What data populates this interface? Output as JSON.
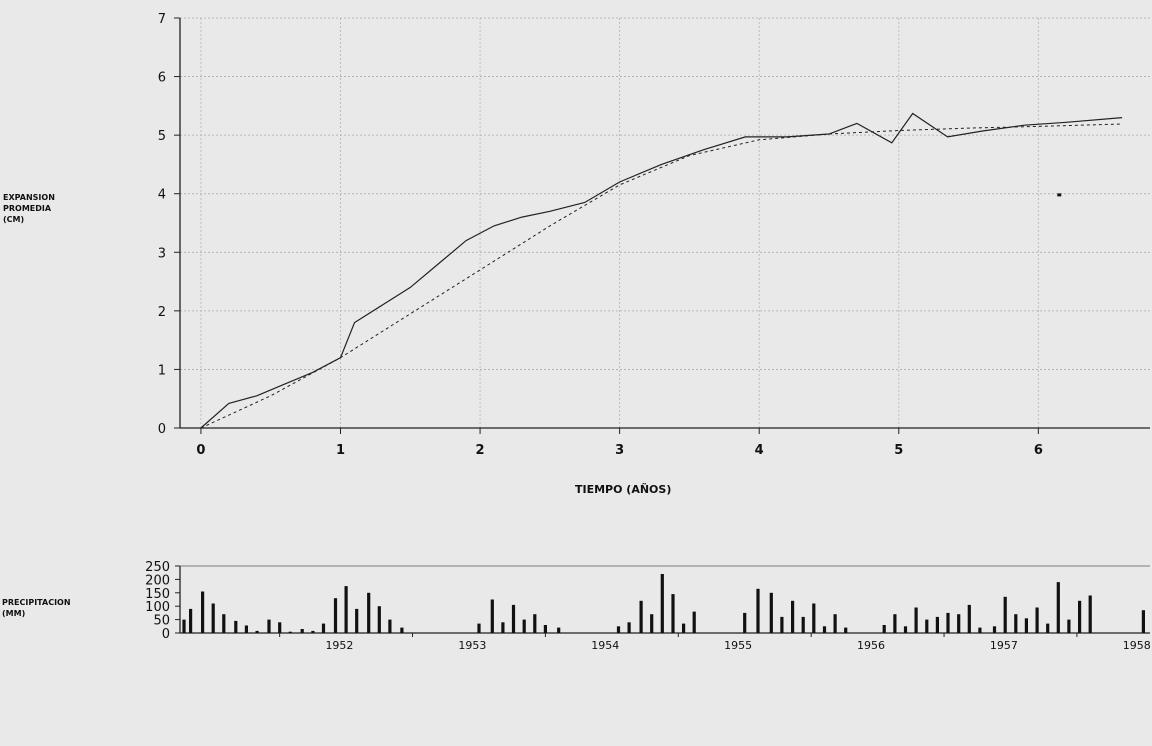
{
  "chart_data": [
    {
      "type": "line",
      "title": "",
      "xlabel": "TIEMPO (AÑOS)",
      "ylabel": "EXPANSION PROMEDIA (CM)",
      "xlim": [
        -0.15,
        6.8
      ],
      "ylim": [
        0,
        7
      ],
      "x_ticks": [
        0,
        1,
        2,
        3,
        4,
        5,
        6
      ],
      "y_ticks": [
        0,
        1,
        2,
        3,
        4,
        5,
        6,
        7
      ],
      "grid": true,
      "series": [
        {
          "values": [
            {
              "x": 0.0,
              "y": 0.0
            },
            {
              "x": 0.2,
              "y": 0.42
            },
            {
              "x": 0.4,
              "y": 0.55
            },
            {
              "x": 0.6,
              "y": 0.75
            },
            {
              "x": 0.8,
              "y": 0.95
            },
            {
              "x": 1.0,
              "y": 1.2
            },
            {
              "x": 1.1,
              "y": 1.8
            },
            {
              "x": 1.3,
              "y": 2.1
            },
            {
              "x": 1.5,
              "y": 2.4
            },
            {
              "x": 1.7,
              "y": 2.8
            },
            {
              "x": 1.9,
              "y": 3.2
            },
            {
              "x": 2.1,
              "y": 3.45
            },
            {
              "x": 2.3,
              "y": 3.6
            },
            {
              "x": 2.5,
              "y": 3.7
            },
            {
              "x": 2.75,
              "y": 3.85
            },
            {
              "x": 3.0,
              "y": 4.2
            },
            {
              "x": 3.3,
              "y": 4.5
            },
            {
              "x": 3.6,
              "y": 4.75
            },
            {
              "x": 3.9,
              "y": 4.97
            },
            {
              "x": 4.2,
              "y": 4.97
            },
            {
              "x": 4.5,
              "y": 5.02
            },
            {
              "x": 4.7,
              "y": 5.2
            },
            {
              "x": 4.95,
              "y": 4.87
            },
            {
              "x": 5.1,
              "y": 5.37
            },
            {
              "x": 5.35,
              "y": 4.97
            },
            {
              "x": 5.6,
              "y": 5.07
            },
            {
              "x": 5.9,
              "y": 5.17
            },
            {
              "x": 6.2,
              "y": 5.22
            },
            {
              "x": 6.6,
              "y": 5.3
            }
          ]
        },
        {
          "style": "dashed",
          "values": [
            {
              "x": 0.0,
              "y": 0.0
            },
            {
              "x": 0.5,
              "y": 0.55
            },
            {
              "x": 1.0,
              "y": 1.2
            },
            {
              "x": 1.5,
              "y": 1.95
            },
            {
              "x": 2.0,
              "y": 2.7
            },
            {
              "x": 2.5,
              "y": 3.45
            },
            {
              "x": 3.0,
              "y": 4.15
            },
            {
              "x": 3.5,
              "y": 4.65
            },
            {
              "x": 4.0,
              "y": 4.92
            },
            {
              "x": 4.5,
              "y": 5.02
            },
            {
              "x": 5.0,
              "y": 5.08
            },
            {
              "x": 5.5,
              "y": 5.12
            },
            {
              "x": 6.0,
              "y": 5.15
            },
            {
              "x": 6.6,
              "y": 5.19
            }
          ]
        }
      ],
      "points": [
        {
          "x": 6.15,
          "y": 3.98
        }
      ]
    },
    {
      "type": "bar",
      "ylabel": "PRECIPITACION (MM)",
      "ylim": [
        0,
        250
      ],
      "y_ticks": [
        0,
        50,
        100,
        150,
        200,
        250
      ],
      "year_labels": [
        {
          "label": "1952",
          "x": 1952.0
        },
        {
          "label": "1953",
          "x": 1953.0
        },
        {
          "label": "1954",
          "x": 1954.0
        },
        {
          "label": "1955",
          "x": 1955.0
        },
        {
          "label": "1956",
          "x": 1956.0
        },
        {
          "label": "1957",
          "x": 1957.0
        },
        {
          "label": "1958",
          "x": 1958.0
        }
      ],
      "x_range": [
        1951.25,
        1958.55
      ],
      "bars": [
        {
          "x": 1951.28,
          "v": 50
        },
        {
          "x": 1951.33,
          "v": 90
        },
        {
          "x": 1951.42,
          "v": 155
        },
        {
          "x": 1951.5,
          "v": 110
        },
        {
          "x": 1951.58,
          "v": 70
        },
        {
          "x": 1951.67,
          "v": 45
        },
        {
          "x": 1951.75,
          "v": 28
        },
        {
          "x": 1951.83,
          "v": 8
        },
        {
          "x": 1951.92,
          "v": 50
        },
        {
          "x": 1952.0,
          "v": 40
        },
        {
          "x": 1952.08,
          "v": 5
        },
        {
          "x": 1952.17,
          "v": 15
        },
        {
          "x": 1952.25,
          "v": 8
        },
        {
          "x": 1952.33,
          "v": 35
        },
        {
          "x": 1952.42,
          "v": 130
        },
        {
          "x": 1952.5,
          "v": 175
        },
        {
          "x": 1952.58,
          "v": 90
        },
        {
          "x": 1952.67,
          "v": 150
        },
        {
          "x": 1952.75,
          "v": 100
        },
        {
          "x": 1952.83,
          "v": 50
        },
        {
          "x": 1952.92,
          "v": 20
        },
        {
          "x": 1953.5,
          "v": 35
        },
        {
          "x": 1953.6,
          "v": 125
        },
        {
          "x": 1953.68,
          "v": 40
        },
        {
          "x": 1953.76,
          "v": 105
        },
        {
          "x": 1953.84,
          "v": 50
        },
        {
          "x": 1953.92,
          "v": 70
        },
        {
          "x": 1954.0,
          "v": 30
        },
        {
          "x": 1954.1,
          "v": 20
        },
        {
          "x": 1954.55,
          "v": 25
        },
        {
          "x": 1954.63,
          "v": 40
        },
        {
          "x": 1954.72,
          "v": 120
        },
        {
          "x": 1954.8,
          "v": 70
        },
        {
          "x": 1954.88,
          "v": 220
        },
        {
          "x": 1954.96,
          "v": 145
        },
        {
          "x": 1955.04,
          "v": 35
        },
        {
          "x": 1955.12,
          "v": 80
        },
        {
          "x": 1955.5,
          "v": 75
        },
        {
          "x": 1955.6,
          "v": 165
        },
        {
          "x": 1955.7,
          "v": 150
        },
        {
          "x": 1955.78,
          "v": 60
        },
        {
          "x": 1955.86,
          "v": 120
        },
        {
          "x": 1955.94,
          "v": 60
        },
        {
          "x": 1956.02,
          "v": 110
        },
        {
          "x": 1956.1,
          "v": 25
        },
        {
          "x": 1956.18,
          "v": 70
        },
        {
          "x": 1956.26,
          "v": 20
        },
        {
          "x": 1956.55,
          "v": 30
        },
        {
          "x": 1956.63,
          "v": 70
        },
        {
          "x": 1956.71,
          "v": 25
        },
        {
          "x": 1956.79,
          "v": 95
        },
        {
          "x": 1956.87,
          "v": 50
        },
        {
          "x": 1956.95,
          "v": 60
        },
        {
          "x": 1957.03,
          "v": 75
        },
        {
          "x": 1957.11,
          "v": 70
        },
        {
          "x": 1957.19,
          "v": 105
        },
        {
          "x": 1957.27,
          "v": 20
        },
        {
          "x": 1957.38,
          "v": 25
        },
        {
          "x": 1957.46,
          "v": 135
        },
        {
          "x": 1957.54,
          "v": 70
        },
        {
          "x": 1957.62,
          "v": 55
        },
        {
          "x": 1957.7,
          "v": 95
        },
        {
          "x": 1957.78,
          "v": 35
        },
        {
          "x": 1957.86,
          "v": 190
        },
        {
          "x": 1957.94,
          "v": 50
        },
        {
          "x": 1958.02,
          "v": 120
        },
        {
          "x": 1958.1,
          "v": 140
        },
        {
          "x": 1958.5,
          "v": 85
        }
      ]
    }
  ]
}
